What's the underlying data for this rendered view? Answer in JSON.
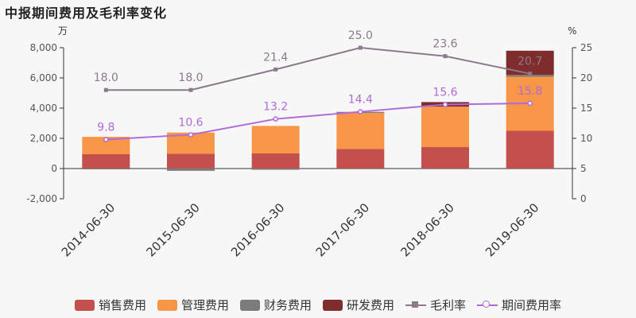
{
  "title": "中报期间费用及毛利率变化",
  "chart_data": {
    "type": "bar",
    "stacked": true,
    "categories": [
      "2014-06-30",
      "2015-06-30",
      "2016-06-30",
      "2017-06-30",
      "2018-06-30",
      "2019-06-30"
    ],
    "y_left": {
      "unit": "万",
      "ylim": [
        -2000,
        8000
      ],
      "ticks": [
        -2000,
        0,
        2000,
        4000,
        6000,
        8000
      ],
      "tick_labels": [
        "-2,000",
        "0",
        "2,000",
        "4,000",
        "6,000",
        "8,000"
      ]
    },
    "y_right": {
      "unit": "%",
      "ylim": [
        0,
        25
      ],
      "ticks": [
        0,
        5,
        10,
        15,
        20,
        25
      ],
      "tick_labels": [
        "0",
        "5",
        "10",
        "15",
        "20",
        "25"
      ]
    },
    "series": [
      {
        "name": "销售费用",
        "type": "bar",
        "color": "#c4504e",
        "values": [
          950,
          980,
          1000,
          1300,
          1420,
          2500
        ]
      },
      {
        "name": "管理费用",
        "type": "bar",
        "color": "#f79646",
        "values": [
          1150,
          1400,
          1820,
          2380,
          2680,
          3580
        ]
      },
      {
        "name": "财务费用",
        "type": "bar",
        "color": "#7b7b7b",
        "values": [
          -20,
          -150,
          -80,
          70,
          0,
          120
        ]
      },
      {
        "name": "研发费用",
        "type": "bar",
        "color": "#7e2c2c",
        "values": [
          0,
          0,
          0,
          0,
          300,
          1600
        ]
      },
      {
        "name": "毛利率",
        "type": "line",
        "axis": "right",
        "color": "#8c7a8c",
        "marker": "square",
        "values": [
          18.0,
          18.0,
          21.4,
          25.0,
          23.6,
          20.7
        ],
        "labels": [
          "18.0",
          "18.0",
          "21.4",
          "25.0",
          "23.6",
          "20.7"
        ]
      },
      {
        "name": "期间费用率",
        "type": "line",
        "axis": "right",
        "color": "#b06ad9",
        "marker": "circle",
        "values": [
          9.8,
          10.6,
          13.2,
          14.4,
          15.6,
          15.8
        ],
        "labels": [
          "9.8",
          "10.6",
          "13.2",
          "14.4",
          "15.6",
          "15.8"
        ]
      }
    ],
    "grid": false,
    "legend_position": "bottom"
  }
}
